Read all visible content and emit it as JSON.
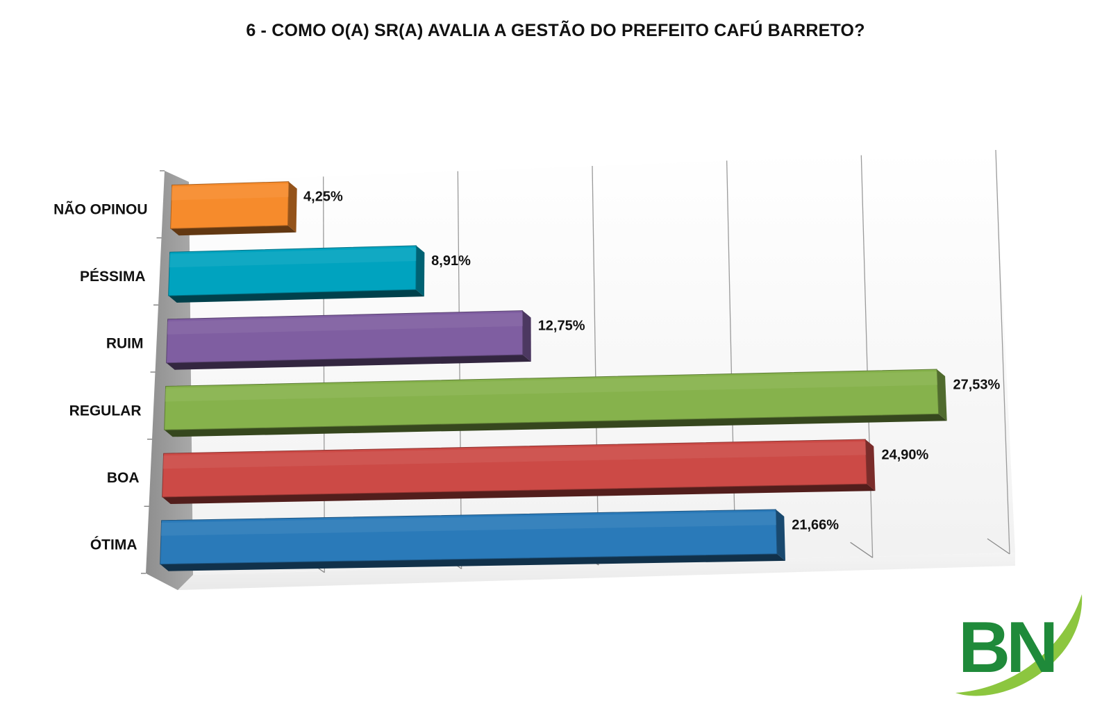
{
  "chart_data": {
    "type": "bar",
    "orientation": "horizontal",
    "style": "3d",
    "title": "6 - COMO O(A) SR(A) AVALIA A GESTÃO DO PREFEITO CAFÚ BARRETO?",
    "categories": [
      "NÃO OPINOU",
      "PÉSSIMA",
      "RUIM",
      "REGULAR",
      "BOA",
      "ÓTIMA"
    ],
    "values": [
      4.25,
      8.91,
      12.75,
      27.53,
      24.9,
      21.66
    ],
    "value_labels": [
      "4,25%",
      "8,91%",
      "12,75%",
      "27,53%",
      "24,90%",
      "21,66%"
    ],
    "colors": [
      "#f68b2c",
      "#00a3bf",
      "#7f5ea1",
      "#86b24c",
      "#cc4a46",
      "#2a7ab9"
    ],
    "xlim": [
      0,
      30
    ],
    "grid": true,
    "legend": false,
    "xlabel": "",
    "ylabel": ""
  },
  "logo": {
    "text": "BN",
    "green": "#1f8a3a",
    "swoosh": "#8cc63f"
  }
}
